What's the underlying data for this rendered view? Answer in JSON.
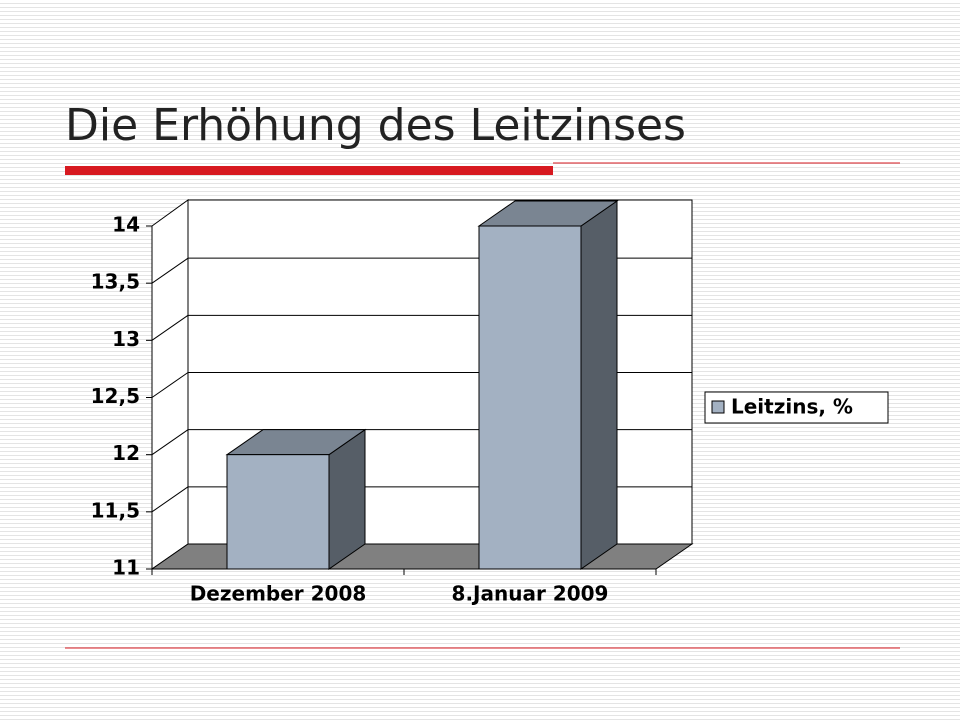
{
  "chart_data": {
    "type": "bar3d",
    "title": "Die Erhöhung des Leitzinses",
    "categories": [
      "Dezember 2008",
      "8.Januar 2009"
    ],
    "series": [
      {
        "name": "Leitzins, %",
        "color": "#a3b1c2",
        "values": [
          12,
          14
        ]
      }
    ],
    "ylim": [
      11,
      14
    ],
    "yticks": [
      11,
      {
        "value": 11.5,
        "label": "11,5"
      },
      12,
      {
        "value": 12.5,
        "label": "12,5"
      },
      13,
      {
        "value": 13.5,
        "label": "13,5"
      },
      14
    ],
    "grid": true,
    "legend": "right"
  }
}
